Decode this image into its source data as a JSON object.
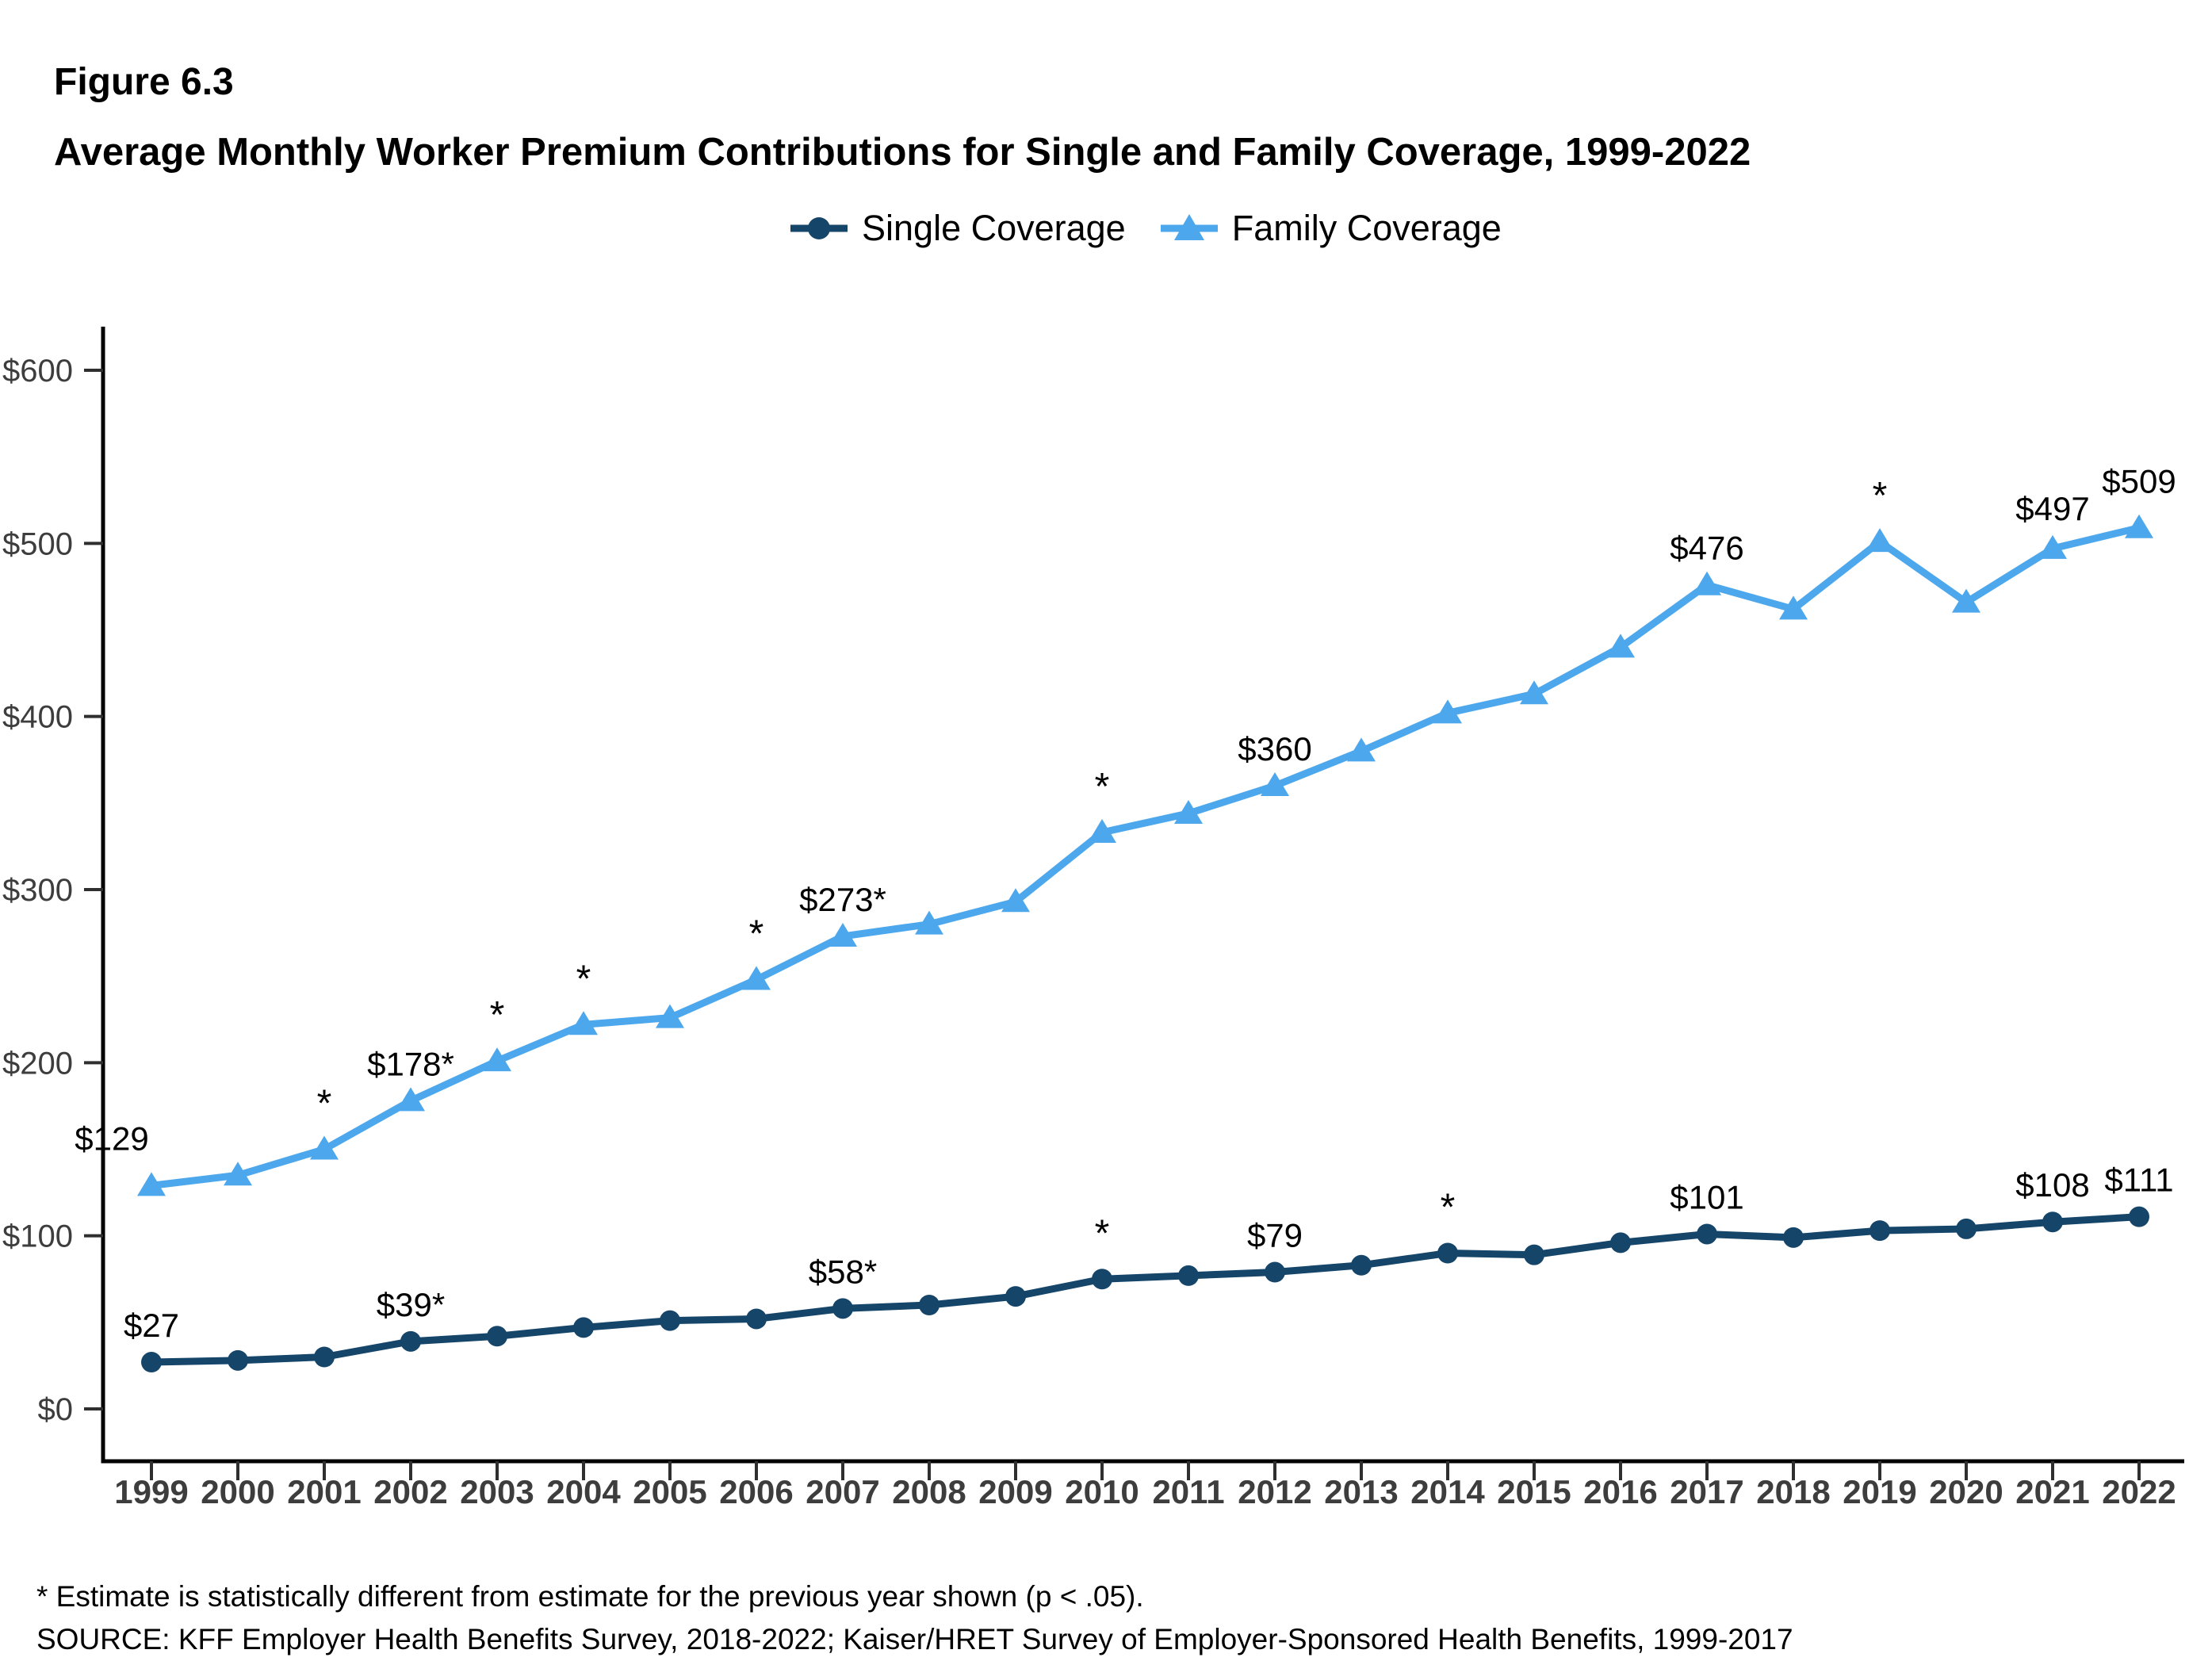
{
  "header": {
    "figure_number": "Figure 6.3",
    "title": "Average Monthly Worker Premium Contributions for Single and Family Coverage, 1999-2022"
  },
  "chart_data": {
    "type": "line",
    "title": "Average Monthly Worker Premium Contributions for Single and Family Coverage, 1999-2022",
    "x": [
      1999,
      2000,
      2001,
      2002,
      2003,
      2004,
      2005,
      2006,
      2007,
      2008,
      2009,
      2010,
      2011,
      2012,
      2013,
      2014,
      2015,
      2016,
      2017,
      2018,
      2019,
      2020,
      2021,
      2022
    ],
    "y_axis": {
      "prefix": "$",
      "ticks": [
        0,
        100,
        200,
        300,
        400,
        500,
        600
      ],
      "range": [
        0,
        600
      ]
    },
    "grid": false,
    "legend_position": "top-center",
    "series": [
      {
        "name": "Single Coverage",
        "color": "#16456A",
        "marker": "circle",
        "values": [
          27,
          28,
          30,
          39,
          42,
          47,
          51,
          52,
          58,
          60,
          65,
          75,
          77,
          79,
          83,
          90,
          89,
          96,
          101,
          99,
          103,
          104,
          108,
          111
        ],
        "point_labels": [
          {
            "year": 1999,
            "text": "$27"
          },
          {
            "year": 2002,
            "text": "$39*"
          },
          {
            "year": 2007,
            "text": "$58*"
          },
          {
            "year": 2012,
            "text": "$79"
          },
          {
            "year": 2017,
            "text": "$101"
          },
          {
            "year": 2021,
            "text": "$108"
          },
          {
            "year": 2022,
            "text": "$111"
          }
        ],
        "asterisk_years": [
          2010,
          2014
        ]
      },
      {
        "name": "Family Coverage",
        "color": "#4DA7EC",
        "marker": "triangle",
        "values": [
          129,
          135,
          150,
          178,
          201,
          222,
          226,
          248,
          273,
          280,
          293,
          333,
          344,
          360,
          380,
          402,
          413,
          440,
          476,
          462,
          501,
          466,
          497,
          509
        ],
        "point_labels": [
          {
            "year": 1999,
            "text": "$129",
            "dx": -50,
            "dy": -45
          },
          {
            "year": 2002,
            "text": "$178*"
          },
          {
            "year": 2007,
            "text": "$273*"
          },
          {
            "year": 2012,
            "text": "$360"
          },
          {
            "year": 2017,
            "text": "$476"
          },
          {
            "year": 2021,
            "text": "$497",
            "dy": -36
          },
          {
            "year": 2022,
            "text": "$509",
            "dy": -44
          }
        ],
        "asterisk_years": [
          2001,
          2003,
          2004,
          2006,
          2010,
          2019
        ]
      }
    ]
  },
  "footnotes": {
    "note": "* Estimate is statistically different from estimate for the previous year shown (p < .05).",
    "source": "SOURCE: KFF Employer Health Benefits Survey, 2018-2022; Kaiser/HRET Survey of Employer-Sponsored Health Benefits, 1999-2017"
  }
}
